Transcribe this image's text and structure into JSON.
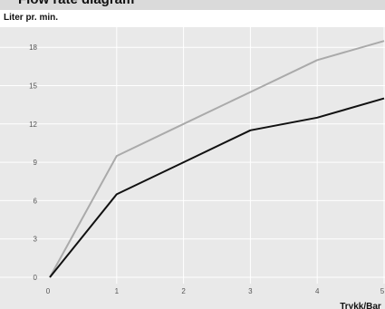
{
  "header": {
    "title": "Flow rate diagram"
  },
  "colors": {
    "plot_background": "#e9e9e9",
    "grid": "#ffffff",
    "series_gray": "#aaaaaa",
    "series_black": "#111111"
  },
  "chart_data": {
    "type": "line",
    "title": "",
    "ylabel": "Liter pr. min.",
    "xlabel": "Trykk/Bar",
    "x": [
      0,
      1,
      2,
      3,
      4,
      5
    ],
    "xlim": [
      0,
      5
    ],
    "ylim": [
      0,
      19
    ],
    "xticks": [
      0,
      1,
      2,
      3,
      4,
      5
    ],
    "yticks": [
      0,
      3,
      6,
      9,
      12,
      15,
      18
    ],
    "grid": true,
    "series": [
      {
        "values": [
          0,
          9.5,
          12,
          14.5,
          17,
          18.5
        ],
        "color": "#aaaaaa"
      },
      {
        "values": [
          0,
          6.5,
          9,
          11.5,
          12.5,
          14
        ],
        "color": "#111111"
      }
    ]
  }
}
